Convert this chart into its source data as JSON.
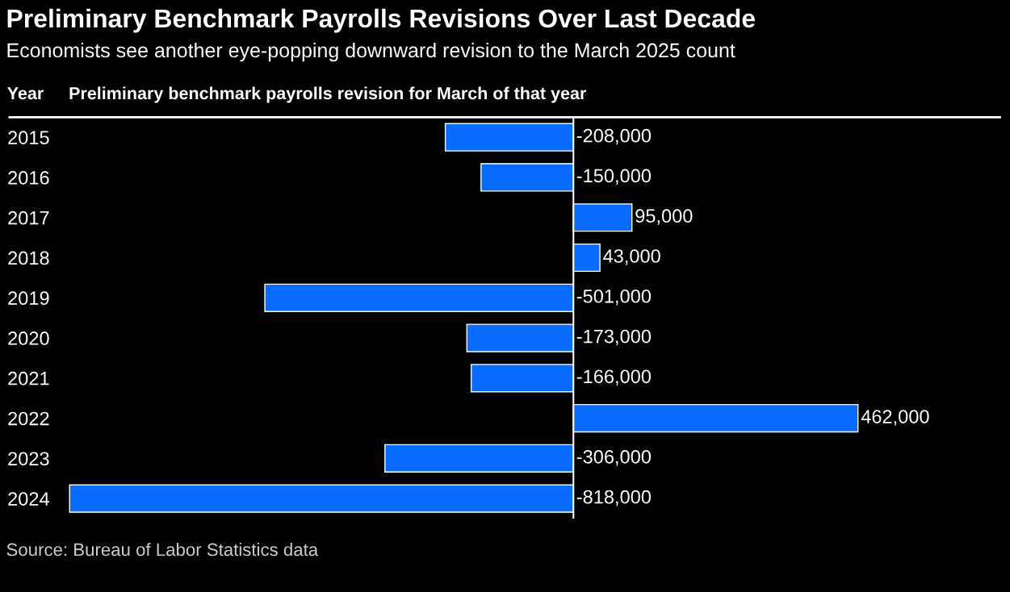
{
  "chart_data": {
    "type": "bar",
    "orientation": "horizontal",
    "title": "Preliminary Benchmark Payrolls Revisions Over Last Decade",
    "subtitle": "Economists see another eye-popping downward revision to the March 2025 count",
    "ylabel": "Year",
    "xlabel": "Preliminary benchmark payrolls revision for March of that year",
    "categories": [
      "2015",
      "2016",
      "2017",
      "2018",
      "2019",
      "2020",
      "2021",
      "2022",
      "2023",
      "2024"
    ],
    "values": [
      -208000,
      -150000,
      95000,
      43000,
      -501000,
      -173000,
      -166000,
      462000,
      -306000,
      -818000
    ],
    "color": "#0a6cff",
    "value_labels": [
      "-208,000",
      "-150,000",
      "95,000",
      "43,000",
      "-501,000",
      "-173,000",
      "-166,000",
      "462,000",
      "-306,000",
      "-818,000"
    ],
    "tick_labels": "y",
    "grid": false,
    "annotations": [
      "Source: Bureau of Labor Statistics data"
    ]
  }
}
